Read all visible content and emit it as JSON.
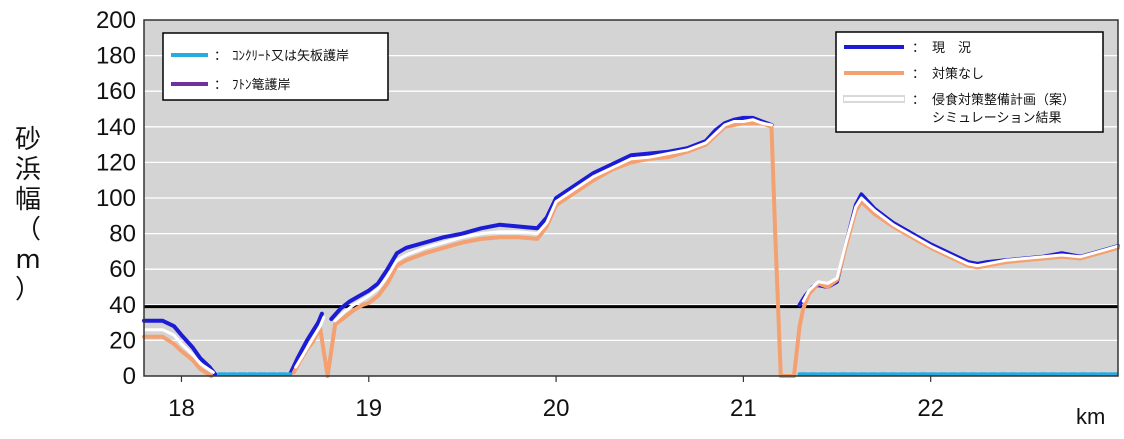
{
  "chart_data": {
    "type": "line",
    "title": "",
    "xlabel": "",
    "x_unit": "km",
    "ylabel": "砂浜幅（m）",
    "ylabel_chars": [
      "砂",
      "浜",
      "幅",
      "（",
      "m",
      "）"
    ],
    "xlim": [
      17.8,
      23.0
    ],
    "ylim": [
      0,
      200
    ],
    "x_ticks": [
      18,
      19,
      20,
      21,
      22
    ],
    "y_ticks": [
      0,
      20,
      40,
      60,
      80,
      100,
      120,
      140,
      160,
      180,
      200
    ],
    "grid": "horizontal",
    "background_color": "#d4d4d4",
    "reference_line": {
      "y": 39,
      "color": "#000000"
    },
    "legend_left": {
      "placement": "top-left",
      "entries": [
        {
          "marker": "：",
          "label": "ｺﾝｸﾘｰﾄ又は矢板護岸",
          "color": "#29abe2"
        },
        {
          "marker": "：",
          "label": "ﾌﾄﾝ篭護岸",
          "color": "#7030a0"
        }
      ]
    },
    "legend_right": {
      "placement": "top-right",
      "entries": [
        {
          "marker": "：",
          "label": "現　況",
          "color": "#1c1cd6"
        },
        {
          "marker": "：",
          "label": "対策なし",
          "color": "#f4a070"
        },
        {
          "marker": "：",
          "label": "侵食対策整備計画（案）",
          "label2": "シミュレーション結果",
          "color": "#ffffff"
        }
      ]
    },
    "series": [
      {
        "name": "現　況",
        "color": "#1c1cd6",
        "width": 4,
        "segments": [
          [
            [
              17.8,
              31
            ],
            [
              17.9,
              31
            ],
            [
              17.96,
              28
            ],
            [
              18.0,
              23
            ],
            [
              18.06,
              16
            ],
            [
              18.1,
              10
            ],
            [
              18.15,
              5
            ],
            [
              18.18,
              1
            ]
          ],
          [
            [
              18.58,
              1
            ],
            [
              18.62,
              10
            ],
            [
              18.67,
              20
            ],
            [
              18.7,
              25
            ],
            [
              18.73,
              30
            ],
            [
              18.75,
              35
            ]
          ],
          [
            [
              18.8,
              32
            ],
            [
              18.85,
              38
            ],
            [
              18.9,
              42
            ],
            [
              18.95,
              45
            ],
            [
              19.0,
              48
            ],
            [
              19.05,
              52
            ],
            [
              19.1,
              60
            ],
            [
              19.15,
              69
            ],
            [
              19.2,
              72
            ],
            [
              19.3,
              75
            ],
            [
              19.4,
              78
            ],
            [
              19.5,
              80
            ],
            [
              19.6,
              83
            ],
            [
              19.7,
              85
            ],
            [
              19.8,
              84
            ],
            [
              19.9,
              83
            ],
            [
              19.95,
              89
            ],
            [
              20.0,
              100
            ],
            [
              20.1,
              107
            ],
            [
              20.2,
              114
            ],
            [
              20.3,
              119
            ],
            [
              20.4,
              124
            ],
            [
              20.5,
              125
            ],
            [
              20.6,
              126
            ],
            [
              20.7,
              128
            ],
            [
              20.8,
              132
            ],
            [
              20.85,
              138
            ],
            [
              20.9,
              142
            ],
            [
              20.95,
              144
            ],
            [
              21.0,
              145
            ],
            [
              21.05,
              145
            ],
            [
              21.1,
              143
            ],
            [
              21.15,
              141
            ]
          ],
          [
            [
              21.3,
              40
            ],
            [
              21.33,
              45
            ],
            [
              21.37,
              50
            ],
            [
              21.4,
              51
            ],
            [
              21.45,
              50
            ],
            [
              21.5,
              53
            ],
            [
              21.55,
              75
            ],
            [
              21.6,
              96
            ],
            [
              21.63,
              102
            ],
            [
              21.7,
              94
            ],
            [
              21.8,
              86
            ],
            [
              21.9,
              80
            ],
            [
              22.0,
              74
            ],
            [
              22.1,
              69
            ],
            [
              22.2,
              64
            ],
            [
              22.25,
              63
            ],
            [
              22.3,
              64
            ],
            [
              22.4,
              65
            ],
            [
              22.5,
              66
            ],
            [
              22.6,
              67
            ],
            [
              22.7,
              69
            ],
            [
              22.8,
              67
            ],
            [
              22.9,
              70
            ],
            [
              23.0,
              73
            ]
          ]
        ]
      },
      {
        "name": "対策なし",
        "color": "#f4a070",
        "width": 4,
        "segments": [
          [
            [
              17.8,
              22
            ],
            [
              17.9,
              22
            ],
            [
              17.96,
              18
            ],
            [
              18.0,
              14
            ],
            [
              18.06,
              9
            ],
            [
              18.1,
              4
            ],
            [
              18.16,
              0
            ]
          ],
          [
            [
              18.6,
              2
            ],
            [
              18.63,
              8
            ],
            [
              18.67,
              15
            ],
            [
              18.7,
              19
            ],
            [
              18.74,
              27
            ],
            [
              18.78,
              0
            ],
            [
              18.82,
              29
            ],
            [
              18.86,
              32
            ],
            [
              18.92,
              37
            ],
            [
              18.97,
              40
            ],
            [
              19.0,
              41
            ],
            [
              19.05,
              45
            ],
            [
              19.1,
              52
            ],
            [
              19.15,
              62
            ],
            [
              19.2,
              65
            ],
            [
              19.3,
              69
            ],
            [
              19.4,
              72
            ],
            [
              19.5,
              75
            ],
            [
              19.6,
              77
            ],
            [
              19.7,
              78
            ],
            [
              19.8,
              78
            ],
            [
              19.9,
              77
            ],
            [
              19.95,
              84
            ],
            [
              20.0,
              96
            ],
            [
              20.1,
              103
            ],
            [
              20.2,
              110
            ],
            [
              20.3,
              116
            ],
            [
              20.4,
              120
            ],
            [
              20.5,
              122
            ],
            [
              20.6,
              123
            ],
            [
              20.7,
              126
            ],
            [
              20.8,
              130
            ],
            [
              20.85,
              135
            ],
            [
              20.9,
              140
            ],
            [
              20.95,
              141
            ],
            [
              21.0,
              142
            ],
            [
              21.05,
              142
            ],
            [
              21.1,
              142
            ],
            [
              21.15,
              140
            ],
            [
              21.17,
              80
            ],
            [
              21.2,
              0
            ],
            [
              21.27,
              0
            ],
            [
              21.3,
              28
            ],
            [
              21.32,
              38
            ],
            [
              21.35,
              46
            ],
            [
              21.4,
              52
            ],
            [
              21.45,
              50
            ],
            [
              21.5,
              54
            ],
            [
              21.55,
              74
            ],
            [
              21.6,
              93
            ],
            [
              21.63,
              98
            ],
            [
              21.7,
              91
            ],
            [
              21.8,
              84
            ],
            [
              21.9,
              78
            ],
            [
              22.0,
              72
            ],
            [
              22.1,
              67
            ],
            [
              22.2,
              62
            ],
            [
              22.25,
              61
            ],
            [
              22.3,
              62
            ],
            [
              22.4,
              64
            ],
            [
              22.5,
              65
            ],
            [
              22.6,
              66
            ],
            [
              22.7,
              67
            ],
            [
              22.8,
              66
            ],
            [
              22.9,
              69
            ],
            [
              23.0,
              72
            ]
          ]
        ]
      },
      {
        "name": "侵食対策整備計画（案）シミュレーション結果",
        "color": "#ffffff",
        "width": 3,
        "segments": [
          [
            [
              17.8,
              26
            ],
            [
              17.9,
              26
            ],
            [
              17.96,
              23
            ],
            [
              18.0,
              18
            ],
            [
              18.06,
              12
            ],
            [
              18.1,
              7
            ],
            [
              18.17,
              2
            ]
          ],
          [
            [
              18.61,
              5
            ],
            [
              18.65,
              12
            ],
            [
              18.7,
              21
            ],
            [
              18.74,
              28
            ],
            [
              18.76,
              33
            ]
          ],
          [
            [
              18.82,
              31
            ],
            [
              18.87,
              36
            ],
            [
              18.92,
              40
            ],
            [
              18.97,
              43
            ],
            [
              19.0,
              45
            ],
            [
              19.05,
              49
            ],
            [
              19.1,
              56
            ],
            [
              19.15,
              65
            ],
            [
              19.2,
              68
            ],
            [
              19.3,
              72
            ],
            [
              19.4,
              75
            ],
            [
              19.5,
              78
            ],
            [
              19.6,
              80
            ],
            [
              19.7,
              81
            ],
            [
              19.8,
              81
            ],
            [
              19.9,
              80
            ],
            [
              19.95,
              86
            ],
            [
              20.0,
              98
            ],
            [
              20.1,
              105
            ],
            [
              20.2,
              112
            ],
            [
              20.3,
              117
            ],
            [
              20.4,
              122
            ],
            [
              20.5,
              123
            ],
            [
              20.6,
              125
            ],
            [
              20.7,
              127
            ],
            [
              20.8,
              131
            ],
            [
              20.85,
              136
            ],
            [
              20.9,
              141
            ],
            [
              20.95,
              143
            ],
            [
              21.0,
              143
            ],
            [
              21.05,
              144
            ],
            [
              21.1,
              142
            ],
            [
              21.15,
              141
            ]
          ],
          [
            [
              21.32,
              42
            ],
            [
              21.35,
              48
            ],
            [
              21.4,
              53
            ],
            [
              21.45,
              52
            ],
            [
              21.5,
              55
            ],
            [
              21.55,
              76
            ],
            [
              21.6,
              95
            ],
            [
              21.63,
              100
            ],
            [
              21.7,
              93
            ],
            [
              21.8,
              85
            ],
            [
              21.9,
              79
            ],
            [
              22.0,
              73
            ],
            [
              22.1,
              68
            ],
            [
              22.2,
              63
            ],
            [
              22.25,
              62
            ],
            [
              22.3,
              63
            ],
            [
              22.4,
              65
            ],
            [
              22.5,
              66
            ],
            [
              22.6,
              67
            ],
            [
              22.7,
              68
            ],
            [
              22.8,
              67
            ],
            [
              22.9,
              70
            ],
            [
              23.0,
              73
            ]
          ]
        ]
      },
      {
        "name": "ｺﾝｸﾘｰﾄ又は矢板護岸",
        "color": "#29abe2",
        "width": 4,
        "dashed": true,
        "segments": [
          [
            [
              18.2,
              1
            ],
            [
              18.58,
              1
            ]
          ],
          [
            [
              21.3,
              1
            ],
            [
              23.0,
              1
            ]
          ]
        ]
      }
    ]
  }
}
